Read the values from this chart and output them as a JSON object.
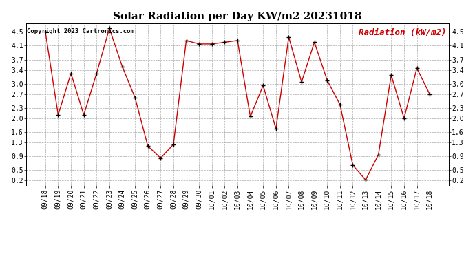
{
  "title": "Solar Radiation per Day KW/m2 20231018",
  "copyright_text": "Copyright 2023 Cartronics.com",
  "legend_label": "Radiation (kW/m2)",
  "dates": [
    "09/18",
    "09/19",
    "09/20",
    "09/21",
    "09/22",
    "09/23",
    "09/24",
    "09/25",
    "09/26",
    "09/27",
    "09/28",
    "09/29",
    "09/30",
    "10/01",
    "10/02",
    "10/03",
    "10/04",
    "10/05",
    "10/06",
    "10/07",
    "10/08",
    "10/09",
    "10/10",
    "10/11",
    "10/12",
    "10/13",
    "10/14",
    "10/15",
    "10/16",
    "10/17",
    "10/18"
  ],
  "values": [
    4.5,
    2.1,
    3.3,
    2.1,
    3.3,
    4.6,
    3.5,
    2.6,
    1.2,
    0.85,
    1.25,
    4.25,
    4.15,
    4.15,
    4.2,
    4.25,
    2.05,
    2.95,
    1.7,
    4.35,
    3.05,
    4.2,
    3.1,
    2.4,
    0.65,
    0.22,
    0.95,
    3.25,
    2.0,
    3.45,
    2.7
  ],
  "line_color": "#cc0000",
  "marker_color": "#000000",
  "grid_color": "#aaaaaa",
  "background_color": "#ffffff",
  "title_color": "#000000",
  "legend_color": "#cc0000",
  "copyright_color": "#000000",
  "ylim": [
    0.05,
    4.75
  ],
  "yticks": [
    0.2,
    0.5,
    0.9,
    1.3,
    1.6,
    2.0,
    2.3,
    2.7,
    3.0,
    3.4,
    3.7,
    4.1,
    4.5
  ],
  "title_fontsize": 11,
  "tick_fontsize": 7,
  "legend_fontsize": 9,
  "copyright_fontsize": 6.5
}
